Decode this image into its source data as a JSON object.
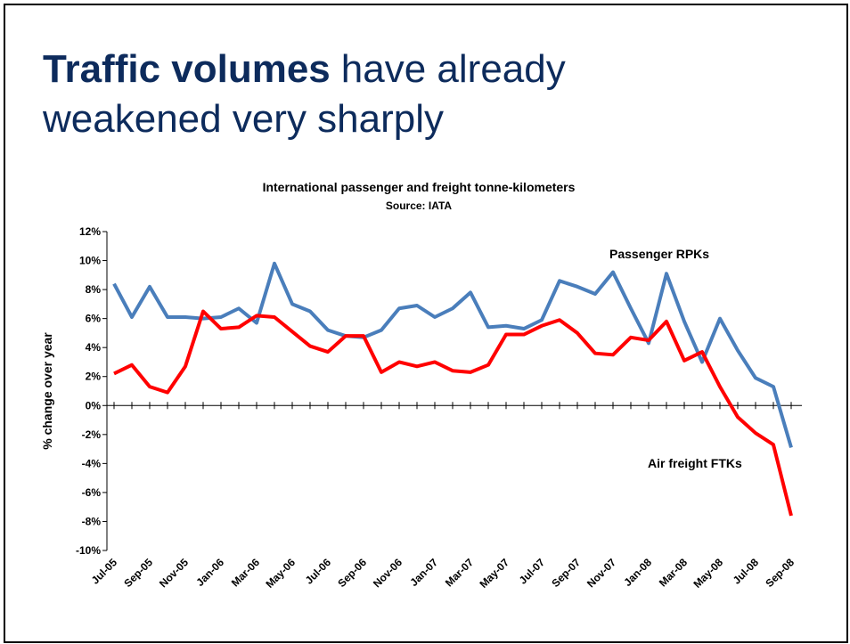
{
  "slide": {
    "title_bold": "Traffic volumes",
    "title_rest": "have already",
    "title_line2": "weakened very sharply"
  },
  "chart_data": {
    "type": "line",
    "title": "International passenger and freight tonne-kilometers",
    "subtitle": "Source: IATA",
    "y_label": "% change over year",
    "categories": [
      "Jul-05",
      null,
      "Sep-05",
      null,
      "Nov-05",
      null,
      "Jan-06",
      null,
      "Mar-06",
      null,
      "May-06",
      null,
      "Jul-06",
      null,
      "Sep-06",
      null,
      "Nov-06",
      null,
      "Jan-07",
      null,
      "Mar-07",
      null,
      "May-07",
      null,
      "Jul-07",
      null,
      "Sep-07",
      null,
      "Nov-07",
      null,
      "Jan-08",
      null,
      "Mar-08",
      null,
      "May-08",
      null,
      "Jul-08",
      null,
      "Sep-08"
    ],
    "series": [
      {
        "name": "Passenger RPKs",
        "color": "#4a7ebb",
        "values": [
          8.4,
          6.1,
          8.2,
          6.1,
          6.1,
          6.0,
          6.1,
          6.7,
          5.7,
          9.8,
          7.0,
          6.5,
          5.2,
          4.8,
          4.7,
          5.2,
          6.7,
          6.9,
          6.1,
          6.7,
          7.8,
          5.4,
          5.5,
          5.3,
          5.9,
          8.6,
          8.2,
          7.7,
          9.2,
          6.7,
          4.3,
          9.1,
          5.8,
          3.0,
          6.0,
          3.8,
          1.9,
          1.3,
          -2.9
        ]
      },
      {
        "name": "Air freight FTKs",
        "color": "#ff0000",
        "values": [
          2.2,
          2.8,
          1.3,
          0.9,
          2.7,
          6.5,
          5.3,
          5.4,
          6.2,
          6.1,
          5.1,
          4.1,
          3.7,
          4.8,
          4.8,
          2.3,
          3.0,
          2.7,
          3.0,
          2.4,
          2.3,
          2.8,
          4.9,
          4.9,
          5.5,
          5.9,
          5.0,
          3.6,
          3.5,
          4.7,
          4.5,
          5.8,
          3.1,
          3.7,
          1.3,
          -0.8,
          -1.9,
          -2.7,
          -7.6
        ]
      }
    ],
    "ylim": [
      -10,
      12
    ],
    "yticks": [
      {
        "value": -10,
        "label": "-10%"
      },
      {
        "value": -8,
        "label": "-8%"
      },
      {
        "value": -6,
        "label": "-6%"
      },
      {
        "value": -4,
        "label": "-4%"
      },
      {
        "value": -2,
        "label": "-2%"
      },
      {
        "value": 0,
        "label": "0%"
      },
      {
        "value": 2,
        "label": "2%"
      },
      {
        "value": 4,
        "label": "4%"
      },
      {
        "value": 6,
        "label": "6%"
      },
      {
        "value": 8,
        "label": "8%"
      },
      {
        "value": 10,
        "label": "10%"
      },
      {
        "value": 12,
        "label": "12%"
      }
    ]
  }
}
